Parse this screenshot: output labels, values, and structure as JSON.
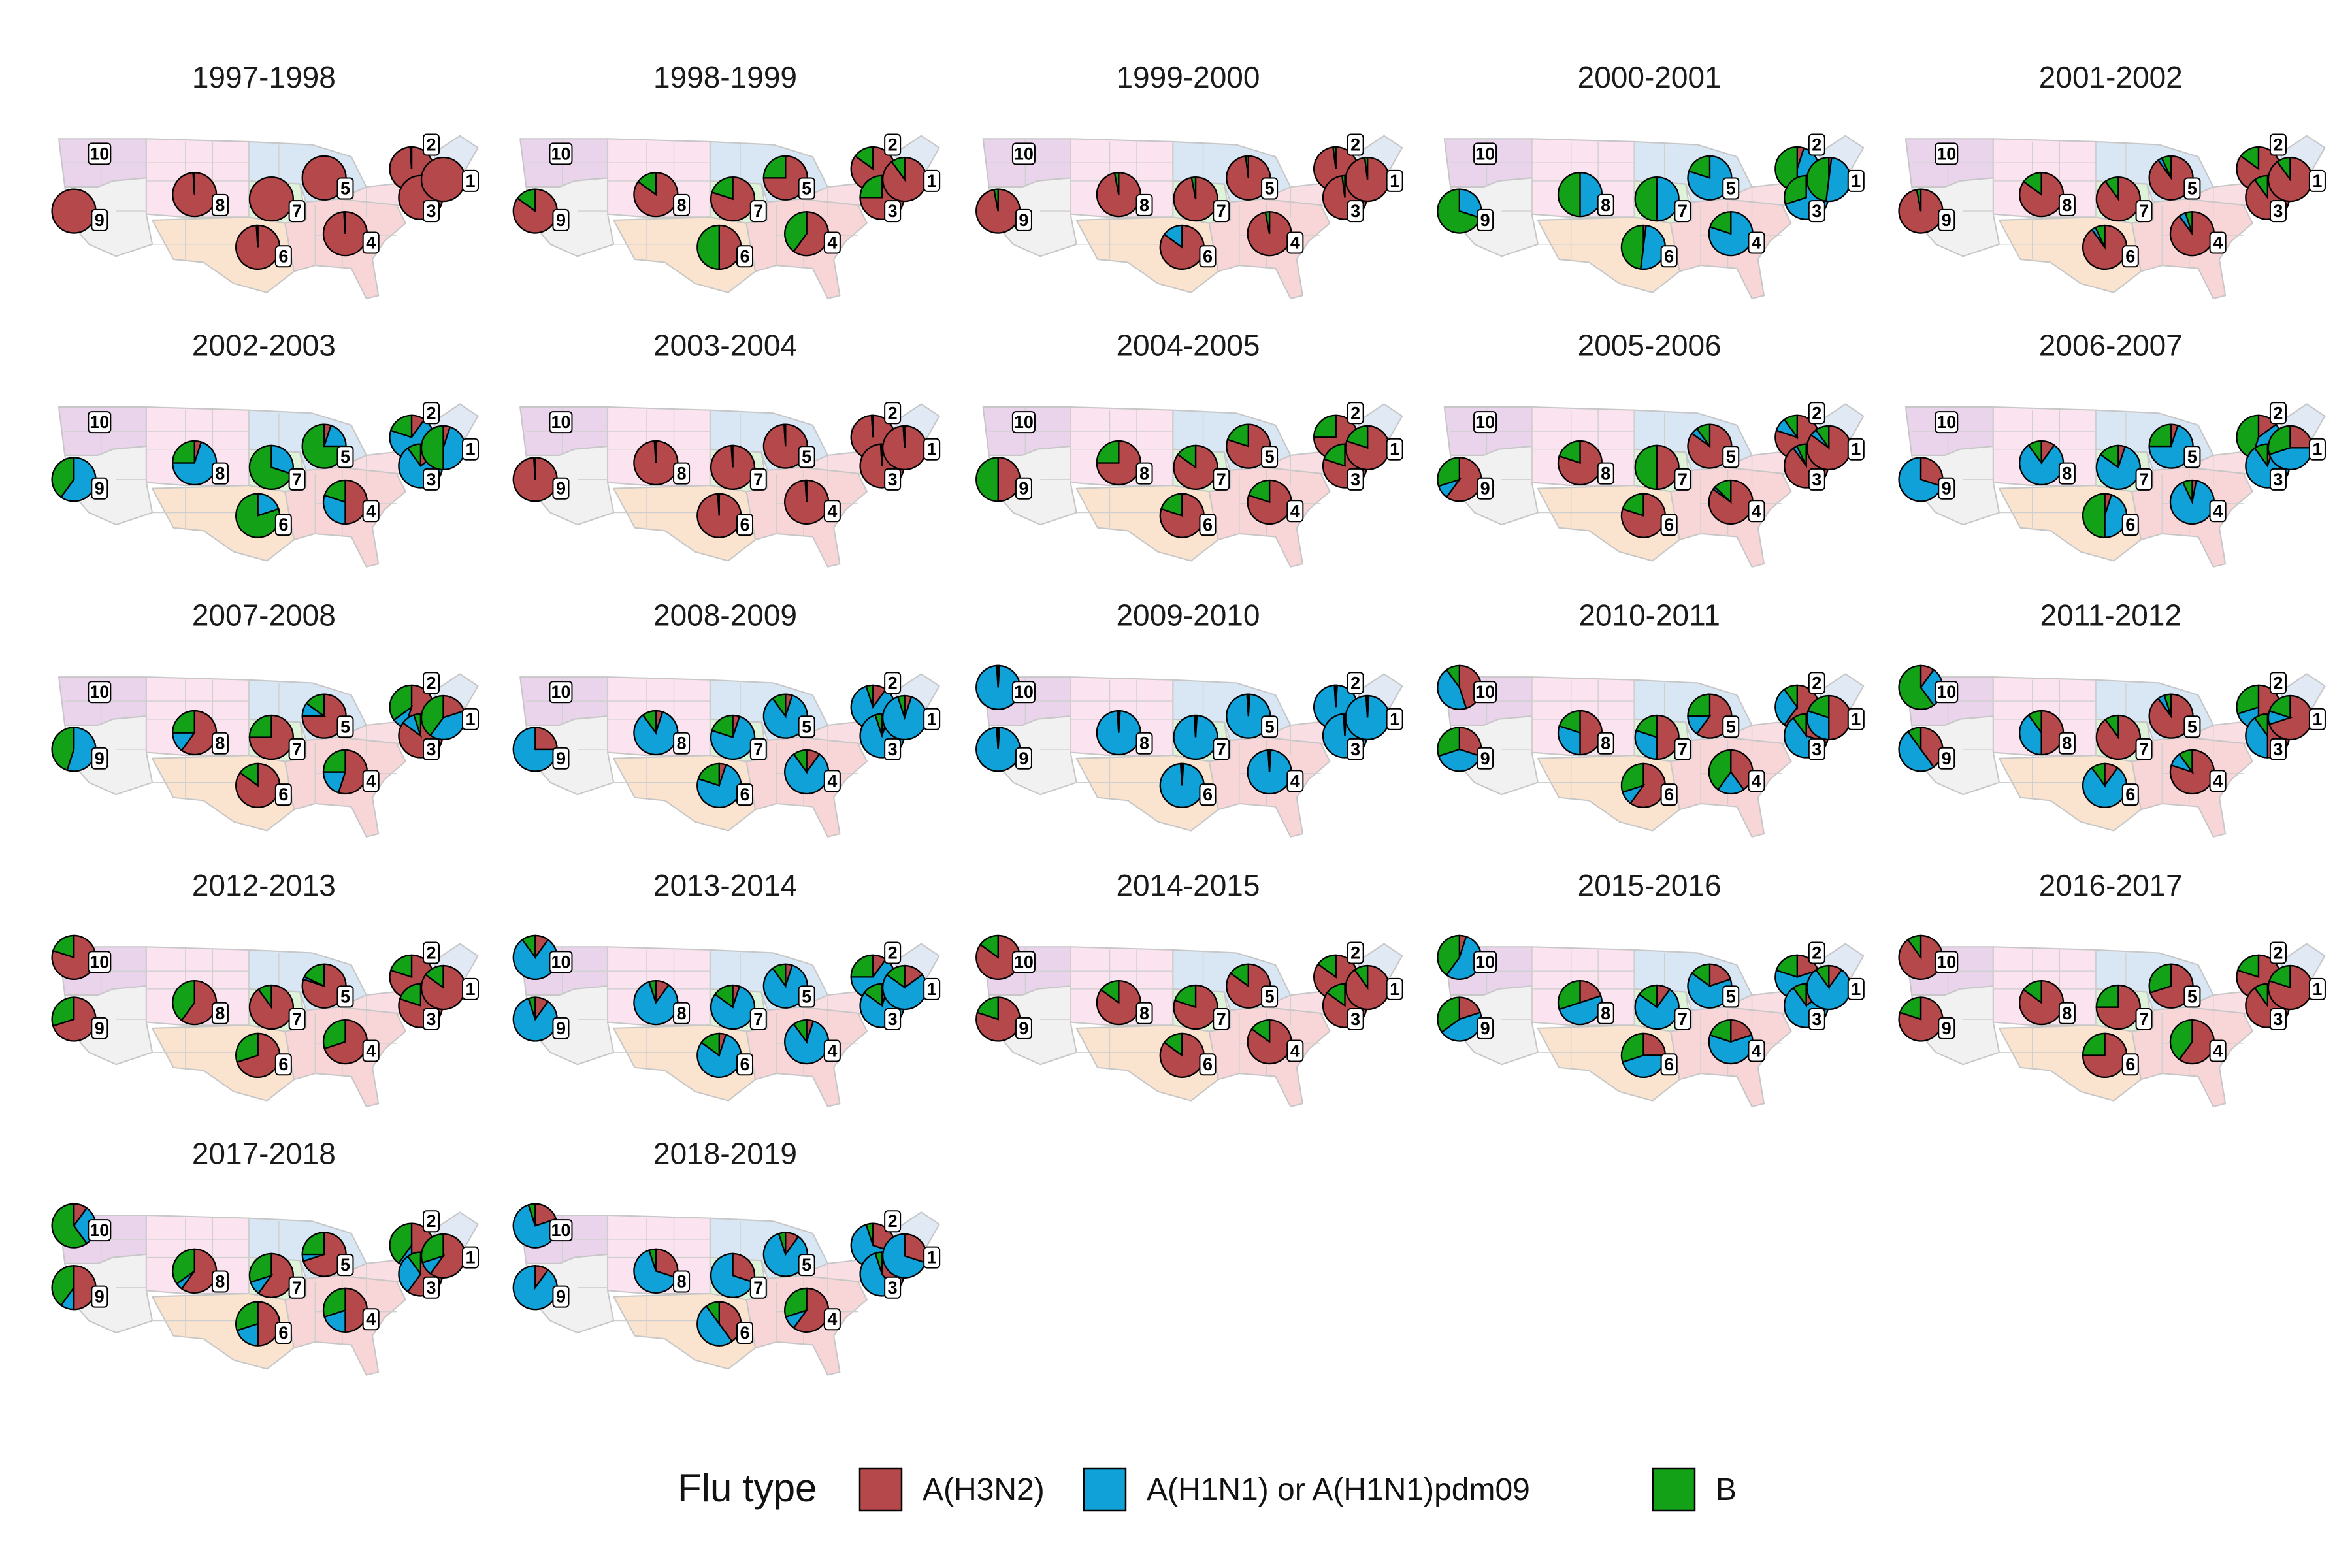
{
  "chart_data": {
    "type": "pie",
    "colors": {
      "A(H3N2)": "#B5484A",
      "A(H1N1) or A(H1N1)pdm09": "#0FA1D8",
      "B": "#13A217"
    },
    "legend": {
      "title": "Flu type",
      "position": "bottom",
      "items": [
        "A(H3N2)",
        "A(H1N1) or A(H1N1)pdm09",
        "B"
      ]
    },
    "region_labels": [
      "1",
      "2",
      "3",
      "4",
      "5",
      "6",
      "7",
      "8",
      "9",
      "10"
    ],
    "panels": [
      {
        "season": "1997-1998",
        "regions": {
          "1": [
            1,
            0,
            0
          ],
          "2": [
            0.99,
            0,
            0.01
          ],
          "3": [
            1,
            0,
            0
          ],
          "4": [
            0.99,
            0,
            0.01
          ],
          "5": [
            1,
            0,
            0
          ],
          "6": [
            0.99,
            0,
            0.01
          ],
          "7": [
            1,
            0,
            0
          ],
          "8": [
            0.99,
            0,
            0.01
          ],
          "9": [
            1,
            0,
            0
          ]
        }
      },
      {
        "season": "1998-1999",
        "regions": {
          "1": [
            0.9,
            0,
            0.1
          ],
          "2": [
            0.85,
            0,
            0.15
          ],
          "3": [
            0.75,
            0,
            0.25
          ],
          "4": [
            0.6,
            0,
            0.4
          ],
          "5": [
            0.75,
            0,
            0.25
          ],
          "6": [
            0.5,
            0,
            0.5
          ],
          "7": [
            0.8,
            0,
            0.2
          ],
          "8": [
            0.85,
            0,
            0.15
          ],
          "9": [
            0.85,
            0,
            0.15
          ]
        }
      },
      {
        "season": "1999-2000",
        "regions": {
          "1": [
            0.98,
            0,
            0.02
          ],
          "2": [
            0.98,
            0,
            0.02
          ],
          "3": [
            0.98,
            0,
            0.02
          ],
          "4": [
            0.97,
            0,
            0.03
          ],
          "5": [
            0.98,
            0,
            0.02
          ],
          "6": [
            0.85,
            0.15,
            0
          ],
          "7": [
            0.97,
            0,
            0.03
          ],
          "8": [
            0.97,
            0,
            0.03
          ],
          "9": [
            0.97,
            0,
            0.03
          ]
        }
      },
      {
        "season": "2000-2001",
        "regions": {
          "1": [
            0.02,
            0.5,
            0.48
          ],
          "2": [
            0.05,
            0.45,
            0.5
          ],
          "3": [
            0,
            0.7,
            0.3
          ],
          "4": [
            0,
            0.8,
            0.2
          ],
          "5": [
            0,
            0.8,
            0.2
          ],
          "6": [
            0.02,
            0.5,
            0.48
          ],
          "7": [
            0,
            0.5,
            0.5
          ],
          "8": [
            0,
            0.5,
            0.5
          ],
          "9": [
            0,
            0.3,
            0.7
          ]
        }
      },
      {
        "season": "2001-2002",
        "regions": {
          "1": [
            0.9,
            0,
            0.1
          ],
          "2": [
            0.85,
            0,
            0.15
          ],
          "3": [
            0.9,
            0,
            0.1
          ],
          "4": [
            0.9,
            0.05,
            0.05
          ],
          "5": [
            0.9,
            0.03,
            0.07
          ],
          "6": [
            0.9,
            0.03,
            0.07
          ],
          "7": [
            0.9,
            0,
            0.1
          ],
          "8": [
            0.85,
            0,
            0.15
          ],
          "9": [
            0.97,
            0,
            0.03
          ]
        }
      },
      {
        "season": "2002-2003",
        "regions": {
          "1": [
            0.05,
            0.45,
            0.5
          ],
          "2": [
            0.1,
            0.7,
            0.2
          ],
          "3": [
            0.15,
            0.75,
            0.1
          ],
          "4": [
            0.5,
            0.3,
            0.2
          ],
          "5": [
            0.05,
            0.2,
            0.75
          ],
          "6": [
            0,
            0.2,
            0.8
          ],
          "7": [
            0,
            0.3,
            0.7
          ],
          "8": [
            0.05,
            0.7,
            0.25
          ],
          "9": [
            0,
            0.6,
            0.4
          ]
        }
      },
      {
        "season": "2003-2004",
        "regions": {
          "1": [
            0.99,
            0,
            0.01
          ],
          "2": [
            0.99,
            0,
            0.01
          ],
          "3": [
            0.99,
            0,
            0.01
          ],
          "4": [
            0.99,
            0,
            0.01
          ],
          "5": [
            0.99,
            0,
            0.01
          ],
          "6": [
            0.99,
            0,
            0.01
          ],
          "7": [
            0.99,
            0,
            0.01
          ],
          "8": [
            0.99,
            0,
            0.01
          ],
          "9": [
            0.99,
            0,
            0.01
          ]
        }
      },
      {
        "season": "2004-2005",
        "regions": {
          "1": [
            0.8,
            0,
            0.2
          ],
          "2": [
            0.75,
            0,
            0.25
          ],
          "3": [
            0.8,
            0,
            0.2
          ],
          "4": [
            0.8,
            0,
            0.2
          ],
          "5": [
            0.8,
            0,
            0.2
          ],
          "6": [
            0.8,
            0,
            0.2
          ],
          "7": [
            0.85,
            0,
            0.15
          ],
          "8": [
            0.75,
            0,
            0.25
          ],
          "9": [
            0.5,
            0,
            0.5
          ]
        }
      },
      {
        "season": "2005-2006",
        "regions": {
          "1": [
            0.85,
            0.05,
            0.1
          ],
          "2": [
            0.8,
            0.1,
            0.1
          ],
          "3": [
            0.9,
            0.03,
            0.07
          ],
          "4": [
            0.85,
            0.02,
            0.13
          ],
          "5": [
            0.85,
            0.05,
            0.1
          ],
          "6": [
            0.8,
            0,
            0.2
          ],
          "7": [
            0.5,
            0,
            0.5
          ],
          "8": [
            0.8,
            0,
            0.2
          ],
          "9": [
            0.6,
            0.1,
            0.3
          ]
        }
      },
      {
        "season": "2006-2007",
        "regions": {
          "1": [
            0.25,
            0.45,
            0.3
          ],
          "2": [
            0.15,
            0.4,
            0.45
          ],
          "3": [
            0.05,
            0.85,
            0.1
          ],
          "4": [
            0.03,
            0.9,
            0.07
          ],
          "5": [
            0.05,
            0.7,
            0.25
          ],
          "6": [
            0.05,
            0.45,
            0.5
          ],
          "7": [
            0.05,
            0.8,
            0.15
          ],
          "8": [
            0.1,
            0.8,
            0.1
          ],
          "9": [
            0.3,
            0.7,
            0
          ]
        }
      },
      {
        "season": "2007-2008",
        "regions": {
          "1": [
            0.2,
            0.4,
            0.4
          ],
          "2": [
            0.55,
            0.1,
            0.35
          ],
          "3": [
            0.85,
            0.1,
            0.05
          ],
          "4": [
            0.55,
            0.2,
            0.25
          ],
          "5": [
            0.75,
            0.1,
            0.15
          ],
          "6": [
            0.85,
            0,
            0.15
          ],
          "7": [
            0.75,
            0,
            0.25
          ],
          "8": [
            0.6,
            0.15,
            0.25
          ],
          "9": [
            0,
            0.55,
            0.45
          ]
        }
      },
      {
        "season": "2008-2009",
        "regions": {
          "1": [
            0.05,
            0.9,
            0.05
          ],
          "2": [
            0.1,
            0.85,
            0.05
          ],
          "3": [
            0.05,
            0.9,
            0.05
          ],
          "4": [
            0.1,
            0.8,
            0.1
          ],
          "5": [
            0.05,
            0.85,
            0.1
          ],
          "6": [
            0.05,
            0.75,
            0.2
          ],
          "7": [
            0.05,
            0.75,
            0.2
          ],
          "8": [
            0.05,
            0.85,
            0.1
          ],
          "9": [
            0.25,
            0.75,
            0
          ]
        }
      },
      {
        "season": "2009-2010",
        "regions": {
          "1": [
            0.01,
            0.98,
            0.01
          ],
          "2": [
            0.01,
            0.98,
            0.01
          ],
          "3": [
            0.01,
            0.98,
            0.01
          ],
          "4": [
            0.01,
            0.98,
            0.01
          ],
          "5": [
            0.01,
            0.98,
            0.01
          ],
          "6": [
            0.01,
            0.98,
            0.01
          ],
          "7": [
            0.01,
            0.98,
            0.01
          ],
          "8": [
            0.01,
            0.98,
            0.01
          ],
          "9": [
            0.01,
            0.98,
            0.01
          ],
          "10": [
            0.01,
            0.98,
            0.01
          ]
        }
      },
      {
        "season": "2010-2011",
        "regions": {
          "1": [
            0.5,
            0.3,
            0.2
          ],
          "2": [
            0.6,
            0.3,
            0.1
          ],
          "3": [
            0.3,
            0.6,
            0.1
          ],
          "4": [
            0.4,
            0.2,
            0.4
          ],
          "5": [
            0.6,
            0.15,
            0.25
          ],
          "6": [
            0.6,
            0.1,
            0.3
          ],
          "7": [
            0.5,
            0.3,
            0.2
          ],
          "8": [
            0.5,
            0.3,
            0.2
          ],
          "9": [
            0.3,
            0.4,
            0.3
          ],
          "10": [
            0.45,
            0.45,
            0.1
          ]
        }
      },
      {
        "season": "2011-2012",
        "regions": {
          "1": [
            0.7,
            0.1,
            0.2
          ],
          "2": [
            0.5,
            0.2,
            0.3
          ],
          "3": [
            0.5,
            0.4,
            0.1
          ],
          "4": [
            0.8,
            0.1,
            0.1
          ],
          "5": [
            0.9,
            0.05,
            0.05
          ],
          "6": [
            0.1,
            0.8,
            0.1
          ],
          "7": [
            0.9,
            0,
            0.1
          ],
          "8": [
            0.5,
            0.4,
            0.1
          ],
          "9": [
            0.4,
            0.5,
            0.1
          ],
          "10": [
            0.1,
            0.3,
            0.6
          ]
        }
      },
      {
        "season": "2012-2013",
        "regions": {
          "1": [
            0.85,
            0,
            0.15
          ],
          "2": [
            0.8,
            0,
            0.2
          ],
          "3": [
            0.8,
            0,
            0.2
          ],
          "4": [
            0.7,
            0,
            0.3
          ],
          "5": [
            0.8,
            0.02,
            0.18
          ],
          "6": [
            0.7,
            0,
            0.3
          ],
          "7": [
            0.9,
            0,
            0.1
          ],
          "8": [
            0.6,
            0,
            0.4
          ],
          "9": [
            0.7,
            0,
            0.3
          ],
          "10": [
            0.8,
            0,
            0.2
          ]
        }
      },
      {
        "season": "2013-2014",
        "regions": {
          "1": [
            0.15,
            0.7,
            0.15
          ],
          "2": [
            0.1,
            0.65,
            0.25
          ],
          "3": [
            0.05,
            0.8,
            0.15
          ],
          "4": [
            0.05,
            0.85,
            0.1
          ],
          "5": [
            0.05,
            0.85,
            0.1
          ],
          "6": [
            0.05,
            0.8,
            0.15
          ],
          "7": [
            0.05,
            0.8,
            0.15
          ],
          "8": [
            0.1,
            0.85,
            0.05
          ],
          "9": [
            0.1,
            0.85,
            0.05
          ],
          "10": [
            0.1,
            0.8,
            0.1
          ]
        }
      },
      {
        "season": "2014-2015",
        "regions": {
          "1": [
            0.9,
            0,
            0.1
          ],
          "2": [
            0.85,
            0,
            0.15
          ],
          "3": [
            0.85,
            0,
            0.15
          ],
          "4": [
            0.85,
            0,
            0.15
          ],
          "5": [
            0.85,
            0,
            0.15
          ],
          "6": [
            0.85,
            0,
            0.15
          ],
          "7": [
            0.8,
            0,
            0.2
          ],
          "8": [
            0.85,
            0,
            0.15
          ],
          "9": [
            0.8,
            0,
            0.2
          ],
          "10": [
            0.85,
            0,
            0.15
          ]
        }
      },
      {
        "season": "2015-2016",
        "regions": {
          "1": [
            0.1,
            0.8,
            0.1
          ],
          "2": [
            0.2,
            0.6,
            0.2
          ],
          "3": [
            0.15,
            0.75,
            0.1
          ],
          "4": [
            0.2,
            0.6,
            0.2
          ],
          "5": [
            0.2,
            0.65,
            0.15
          ],
          "6": [
            0.25,
            0.45,
            0.3
          ],
          "7": [
            0.1,
            0.75,
            0.15
          ],
          "8": [
            0.2,
            0.5,
            0.3
          ],
          "9": [
            0.2,
            0.45,
            0.35
          ],
          "10": [
            0.05,
            0.55,
            0.4
          ]
        }
      },
      {
        "season": "2016-2017",
        "regions": {
          "1": [
            0.8,
            0,
            0.2
          ],
          "2": [
            0.8,
            0,
            0.2
          ],
          "3": [
            0.9,
            0,
            0.1
          ],
          "4": [
            0.6,
            0,
            0.4
          ],
          "5": [
            0.7,
            0,
            0.3
          ],
          "6": [
            0.75,
            0,
            0.25
          ],
          "7": [
            0.75,
            0,
            0.25
          ],
          "8": [
            0.85,
            0,
            0.15
          ],
          "9": [
            0.8,
            0,
            0.2
          ],
          "10": [
            0.9,
            0,
            0.1
          ]
        }
      },
      {
        "season": "2017-2018",
        "regions": {
          "1": [
            0.6,
            0.1,
            0.3
          ],
          "2": [
            0.5,
            0.1,
            0.4
          ],
          "3": [
            0.6,
            0.3,
            0.1
          ],
          "4": [
            0.5,
            0.2,
            0.3
          ],
          "5": [
            0.7,
            0.05,
            0.25
          ],
          "6": [
            0.5,
            0.2,
            0.3
          ],
          "7": [
            0.6,
            0.1,
            0.3
          ],
          "8": [
            0.6,
            0.05,
            0.35
          ],
          "9": [
            0.5,
            0.1,
            0.4
          ],
          "10": [
            0.1,
            0.3,
            0.6
          ]
        }
      },
      {
        "season": "2018-2019",
        "regions": {
          "1": [
            0.3,
            0.7,
            0
          ],
          "2": [
            0.3,
            0.65,
            0.05
          ],
          "3": [
            0.4,
            0.55,
            0.05
          ],
          "4": [
            0.6,
            0.1,
            0.3
          ],
          "5": [
            0.1,
            0.85,
            0.05
          ],
          "6": [
            0.4,
            0.5,
            0.1
          ],
          "7": [
            0.3,
            0.7,
            0
          ],
          "8": [
            0.3,
            0.65,
            0.05
          ],
          "9": [
            0.1,
            0.9,
            0
          ],
          "10": [
            0.2,
            0.75,
            0.05
          ]
        }
      }
    ]
  }
}
